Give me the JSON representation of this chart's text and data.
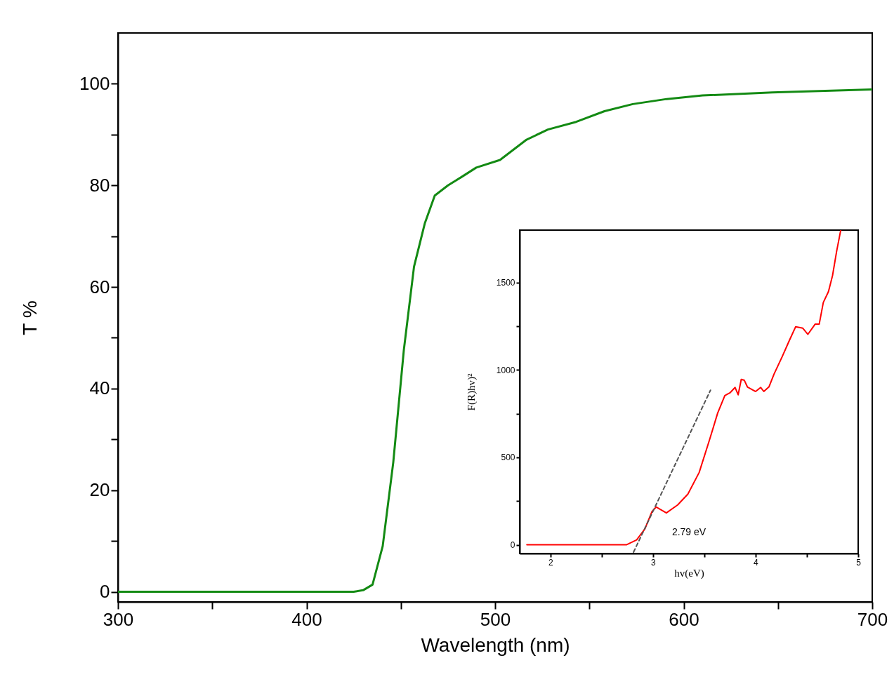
{
  "chart_data": [
    {
      "type": "line",
      "xlabel": "Wavelength (nm)",
      "ylabel": "T %",
      "xlim": [
        300,
        700
      ],
      "ylim": [
        -2,
        110
      ],
      "xticks": [
        300,
        {
          "value": 350,
          "label": null
        },
        400,
        {
          "value": 450,
          "label": null
        },
        500,
        {
          "value": 550,
          "label": null
        },
        600,
        {
          "value": 650,
          "label": null
        },
        700
      ],
      "yticks": [
        0,
        {
          "value": 10,
          "label": null
        },
        20,
        {
          "value": 30,
          "label": null
        },
        40,
        {
          "value": 50,
          "label": null
        },
        60,
        {
          "value": 70,
          "label": null
        },
        80,
        {
          "value": 90,
          "label": null
        },
        100
      ],
      "series": [
        {
          "color": "#138a13",
          "x": [
            300,
            350,
            400,
            425,
            430,
            435,
            440.4,
            446,
            451.6,
            457,
            462.7,
            468,
            475,
            482,
            490,
            502.6,
            516.7,
            528,
            543,
            558,
            573,
            591,
            610,
            647,
            700
          ],
          "values": [
            0,
            0,
            0,
            0,
            0.3,
            1.4,
            9,
            25.5,
            47.6,
            64,
            72.5,
            78,
            80,
            81.6,
            83.5,
            85,
            89,
            91,
            92.5,
            94.6,
            96,
            97,
            97.7,
            98.3,
            98.9
          ]
        }
      ]
    },
    {
      "type": "line",
      "xlabel": "hv(eV)",
      "ylabel": "F(R)hv)²",
      "xlim": [
        1.7,
        5
      ],
      "ylim": [
        -50,
        1800
      ],
      "xticks": [
        2,
        {
          "value": 2.5,
          "label": null
        },
        3,
        {
          "value": 3.5,
          "label": null
        },
        4,
        {
          "value": 4.5,
          "label": null
        },
        5
      ],
      "yticks": [
        0,
        {
          "value": 250,
          "label": null
        },
        500,
        {
          "value": 750,
          "label": null
        },
        1000,
        {
          "value": 1250,
          "label": null
        },
        1500
      ],
      "annotations": [
        "2.79 eV"
      ],
      "series": [
        {
          "color": "#ff0000",
          "x": [
            1.77,
            2.74,
            2.84,
            2.92,
            2.99,
            3.03,
            3.13,
            3.24,
            3.34,
            3.45,
            3.55,
            3.63,
            3.7,
            3.75,
            3.8,
            3.83,
            3.86,
            3.89,
            3.92,
            4.0,
            4.05,
            4.08,
            4.13,
            4.18,
            4.26,
            4.33,
            4.39,
            4.46,
            4.51,
            4.58,
            4.62,
            4.66,
            4.71,
            4.75,
            4.79,
            4.83
          ],
          "values": [
            0,
            0,
            28,
            90,
            190,
            216,
            182,
            228,
            290,
            414,
            599,
            753,
            853,
            869,
            900,
            858,
            946,
            941,
            903,
            877,
            900,
            877,
            903,
            977,
            1077,
            1170,
            1247,
            1239,
            1204,
            1262,
            1262,
            1386,
            1448,
            1540,
            1679,
            1800
          ]
        },
        {
          "type": "line",
          "color": "#555555",
          "line_style": "dashed",
          "x": [
            2.81,
            3.56
          ],
          "values": [
            -42,
            884
          ]
        }
      ]
    }
  ]
}
